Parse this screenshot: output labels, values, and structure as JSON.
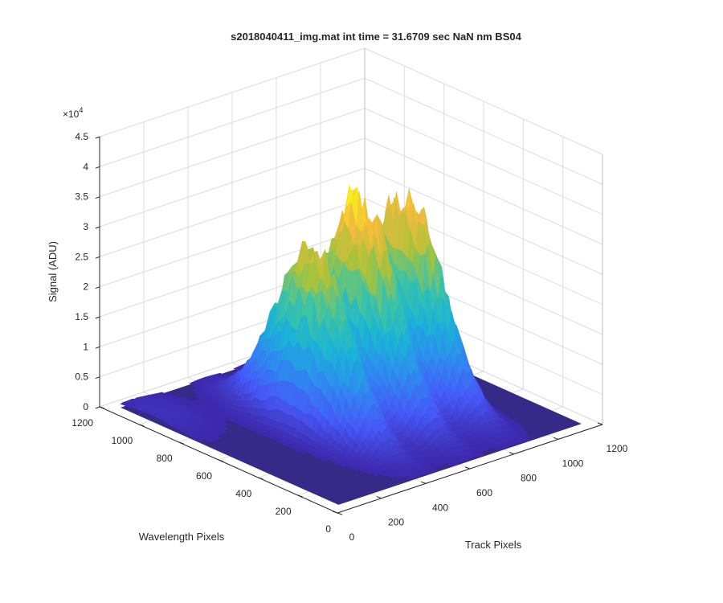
{
  "chart_data": {
    "type": "surface3d",
    "title": "s2018040411_img.mat int time = 31.6709 sec  NaN nm BS04",
    "xlabel": "Track Pixels",
    "ylabel": "Wavelength Pixels",
    "zlabel": "Signal (ADU)",
    "z_exponent_label": "×10",
    "z_exponent_value": "4",
    "xlim": [
      0,
      1200
    ],
    "ylim": [
      0,
      1200
    ],
    "zlim": [
      0,
      45000
    ],
    "x_ticks": [
      "0",
      "200",
      "400",
      "600",
      "800",
      "1000",
      "1200"
    ],
    "y_ticks": [
      "0",
      "200",
      "400",
      "600",
      "800",
      "1000",
      "1200"
    ],
    "z_ticks": [
      "0",
      "0.5",
      "1",
      "1.5",
      "2",
      "2.5",
      "3",
      "3.5",
      "4",
      "4.5"
    ],
    "grid": true,
    "colormap": [
      "#3e26a8",
      "#4659f8",
      "#2e8bf0",
      "#1ab4d6",
      "#3ec3a4",
      "#a8c33b",
      "#f4ba3c",
      "#f9fb15"
    ],
    "baseline_color": "#352a87",
    "peaks": [
      {
        "track_center": 430,
        "wavelength_center": 600,
        "peak_signal": 29000
      },
      {
        "track_center": 640,
        "wavelength_center": 600,
        "peak_signal": 35000
      },
      {
        "track_center": 850,
        "wavelength_center": 600,
        "peak_signal": 33000
      }
    ],
    "minor_bump": {
      "track_center": 100,
      "wavelength_center": 1000,
      "peak_signal": 1200
    }
  }
}
